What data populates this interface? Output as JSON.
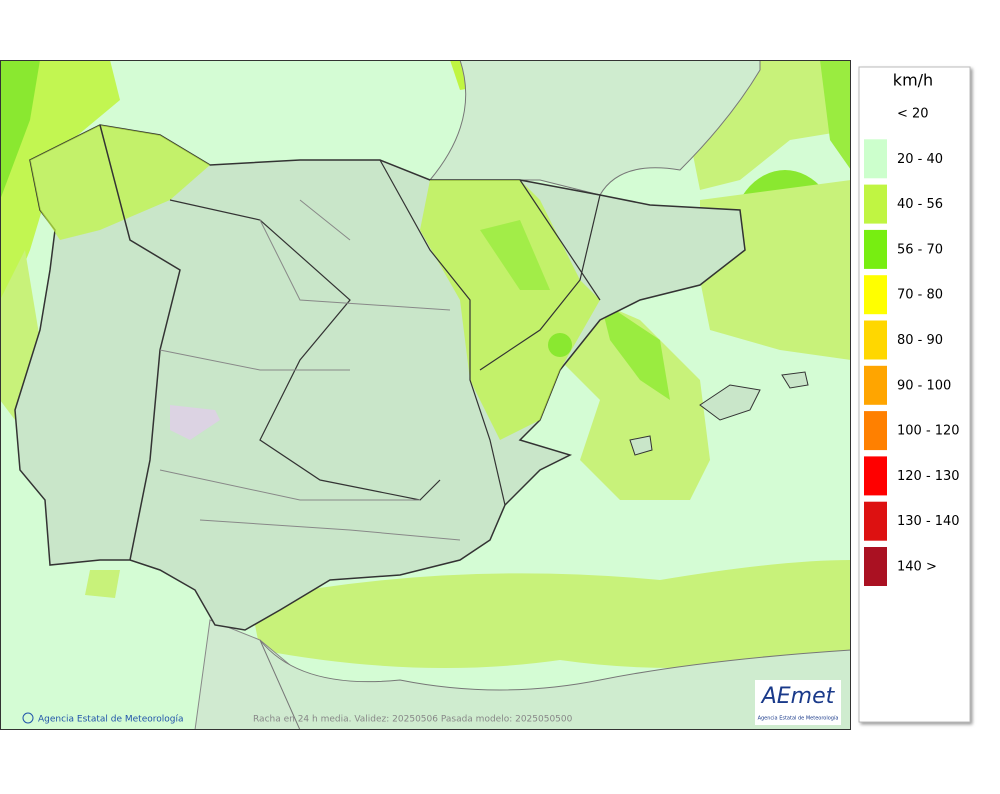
{
  "legend": {
    "title": "km/h",
    "items": [
      {
        "label": "< 20"
      },
      {
        "label": "20 - 40",
        "color": "#ccffcc"
      },
      {
        "label": "40 - 56",
        "color": "#c0f542"
      },
      {
        "label": "56 - 70",
        "color": "#77ee11"
      },
      {
        "label": "70 - 80",
        "color": "#ffff00"
      },
      {
        "label": "80 - 90",
        "color": "#ffd700"
      },
      {
        "label": "90 - 100",
        "color": "#ffa500"
      },
      {
        "label": "100 - 120",
        "color": "#ff8000"
      },
      {
        "label": "120 - 130",
        "color": "#ff0000"
      },
      {
        "label": "130 - 140",
        "color": "#dd1111"
      },
      {
        "label": "140 >",
        "color": "#aa1122"
      }
    ]
  },
  "footer": {
    "copyright": "Agencia Estatal de Meteorología",
    "caption": "Racha en 24 h media. Validez: 20250506 Pasada modelo: 2025050500"
  },
  "logo": {
    "name": "AEmet",
    "subtitle": "Agencia Estatal de Meteorología"
  }
}
